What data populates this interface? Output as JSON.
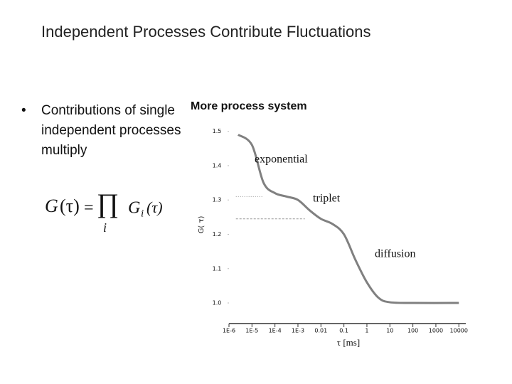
{
  "slide": {
    "title": "Independent Processes Contribute Fluctuations",
    "bullet": "Contributions of single independent processes multiply",
    "formula": {
      "lhs": "G",
      "lhs_arg": "(τ)",
      "equals": "=",
      "product": "∏",
      "index": "i",
      "rhs": "G",
      "rhs_index": "i",
      "rhs_arg": "(τ)"
    }
  },
  "chart_data": {
    "type": "line",
    "title": "More process system",
    "x_label": "τ [ms]",
    "y_label": "G( τ)",
    "x_scale": "log",
    "xlim": [
      1e-06,
      20000
    ],
    "xticks": [
      {
        "value": 1e-06,
        "label": "1E-6"
      },
      {
        "value": 1e-05,
        "label": "1E-5"
      },
      {
        "value": 0.0001,
        "label": "1E-4"
      },
      {
        "value": 0.001,
        "label": "1E-3"
      },
      0.01,
      0.1,
      1,
      10,
      100,
      1000,
      10000
    ],
    "ylim": [
      0.94,
      1.52
    ],
    "yticks": [
      {
        "value": 1,
        "label": "1.0"
      },
      1.1,
      1.2,
      1.3,
      1.4,
      1.5
    ],
    "series": [
      {
        "color": "#808080",
        "x": [
          2.5e-06,
          1e-05,
          3.2e-05,
          0.0001,
          0.00032,
          0.001,
          0.0032,
          0.01,
          0.032,
          0.1,
          0.32,
          1,
          3.2,
          10,
          100,
          10000
        ],
        "values": [
          1.49,
          1.46,
          1.35,
          1.32,
          1.31,
          1.3,
          1.27,
          1.245,
          1.23,
          1.2,
          1.125,
          1.06,
          1.015,
          1.002,
          1.0,
          1.0
        ]
      }
    ],
    "reference_lines": [
      {
        "y": 1.31,
        "x": [
          2e-06,
          3e-05
        ],
        "style": "dotted"
      },
      {
        "y": 1.245,
        "x": [
          2e-06,
          0.002
        ],
        "style": "dashed"
      }
    ],
    "annotations": [
      "exponential",
      "triplet",
      "diffusion"
    ]
  }
}
